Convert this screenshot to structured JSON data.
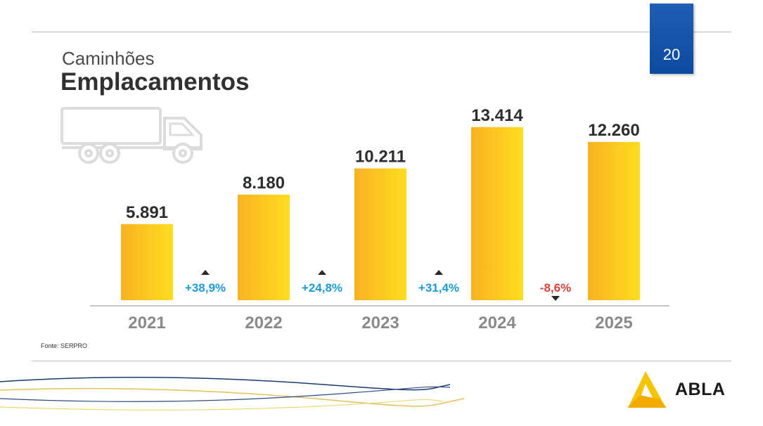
{
  "header": {
    "subtitle": "Caminhões",
    "title": "Emplacamentos",
    "page_number": "20"
  },
  "chart_data": {
    "type": "bar",
    "categories": [
      "2021",
      "2022",
      "2023",
      "2024",
      "2025"
    ],
    "values": [
      5891,
      8180,
      10211,
      13414,
      12260
    ],
    "value_labels": [
      "5.891",
      "8.180",
      "10.211",
      "13.414",
      "12.260"
    ],
    "ylim": [
      0,
      14000
    ],
    "grid": false,
    "changes": [
      {
        "label": "+38,9%",
        "direction": "up",
        "color": "#1e9bd7"
      },
      {
        "label": "+24,8%",
        "direction": "up",
        "color": "#1e9bd7"
      },
      {
        "label": "+31,4%",
        "direction": "up",
        "color": "#1e9bd7"
      },
      {
        "label": "-8,6%",
        "direction": "down",
        "color": "#d9413b"
      }
    ],
    "bar_color_left": "#f9b222",
    "bar_color_right": "#ffdd1f"
  },
  "source": "Fonte: SERPRO",
  "logo": {
    "text": "ABLA",
    "icon": "abla-triangle-logo-icon"
  },
  "decor": {
    "truck_icon": "truck-outline-icon"
  }
}
